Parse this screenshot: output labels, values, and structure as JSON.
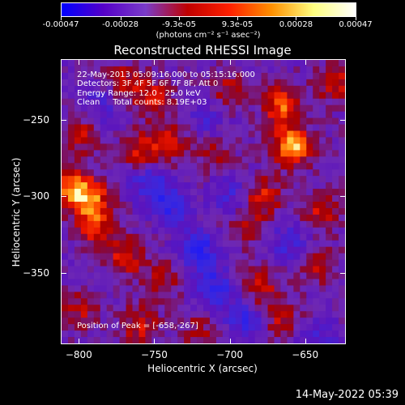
{
  "chart_data": {
    "type": "heatmap",
    "title": "Reconstructed RHESSI Image",
    "xlabel": "Heliocentric X (arcsec)",
    "ylabel": "Heliocentric Y (arcsec)",
    "xlim": [
      -812,
      -623
    ],
    "ylim": [
      -397,
      -210
    ],
    "x_ticks": [
      -800,
      -750,
      -700,
      -650
    ],
    "y_ticks": [
      -250,
      -300,
      -350
    ],
    "colorbar": {
      "range": [
        -0.00047,
        0.00047
      ],
      "tick_values": [
        -0.00047,
        -0.00028,
        -9.3e-05,
        9.3e-05,
        0.00028,
        0.00047
      ],
      "tick_labels": [
        "-0.00047",
        "-0.00028",
        "-9.3e-05",
        "9.3e-05",
        "0.00028",
        "0.00047"
      ],
      "units": "(photons cm⁻² s⁻¹ asec⁻²)",
      "colors": [
        "#0000ff",
        "#5500c8",
        "#7a3cc8",
        "#c00000",
        "#ff2000",
        "#ff9000",
        "#ffff80",
        "#ffffff"
      ]
    },
    "annotations": [
      "22-May-2013 05:09:16.000 to 05:15:16.000",
      "Detectors: 3F 4F 5F 6F 7F 8F, Att 0",
      "Energy Range: 12.0 - 25.0 keV",
      "Clean     Total counts: 8.19E+03"
    ],
    "peak_text": "Position of Peak = [-658,-267]",
    "peak": [
      -658,
      -267
    ],
    "hot_spots": [
      {
        "x": -658,
        "y": -267,
        "v": 1.0
      },
      {
        "x": -665,
        "y": -240,
        "v": 0.75
      },
      {
        "x": -678,
        "y": -300,
        "v": 0.55
      },
      {
        "x": -805,
        "y": -295,
        "v": 0.8
      },
      {
        "x": -792,
        "y": -302,
        "v": 0.7
      },
      {
        "x": -790,
        "y": -320,
        "v": 0.6
      },
      {
        "x": -760,
        "y": -270,
        "v": 0.55
      },
      {
        "x": -740,
        "y": -265,
        "v": 0.5
      },
      {
        "x": -770,
        "y": -225,
        "v": 0.45
      },
      {
        "x": -750,
        "y": -235,
        "v": 0.5
      },
      {
        "x": -800,
        "y": -260,
        "v": 0.45
      },
      {
        "x": -630,
        "y": -225,
        "v": 0.5
      },
      {
        "x": -640,
        "y": -310,
        "v": 0.45
      },
      {
        "x": -680,
        "y": -360,
        "v": 0.5
      },
      {
        "x": -665,
        "y": -380,
        "v": 0.45
      },
      {
        "x": -700,
        "y": -230,
        "v": 0.4
      },
      {
        "x": -760,
        "y": -385,
        "v": 0.5
      },
      {
        "x": -770,
        "y": -340,
        "v": 0.55
      },
      {
        "x": -745,
        "y": -355,
        "v": 0.4
      },
      {
        "x": -720,
        "y": -390,
        "v": 0.35
      },
      {
        "x": -710,
        "y": -270,
        "v": 0.35
      },
      {
        "x": -640,
        "y": -345,
        "v": 0.4
      },
      {
        "x": -690,
        "y": -320,
        "v": 0.35
      },
      {
        "x": -800,
        "y": -375,
        "v": 0.4
      }
    ],
    "cold_spots": [
      {
        "x": -740,
        "y": -305,
        "v": -0.55
      },
      {
        "x": -720,
        "y": -335,
        "v": -0.6
      },
      {
        "x": -710,
        "y": -360,
        "v": -0.55
      },
      {
        "x": -690,
        "y": -380,
        "v": -0.5
      },
      {
        "x": -755,
        "y": -290,
        "v": -0.45
      },
      {
        "x": -700,
        "y": -300,
        "v": -0.4
      },
      {
        "x": -660,
        "y": -330,
        "v": -0.4
      },
      {
        "x": -785,
        "y": -240,
        "v": -0.35
      },
      {
        "x": -640,
        "y": -395,
        "v": -0.4
      },
      {
        "x": -715,
        "y": -250,
        "v": -0.3
      }
    ]
  },
  "timestamp": "14-May-2022 05:39"
}
